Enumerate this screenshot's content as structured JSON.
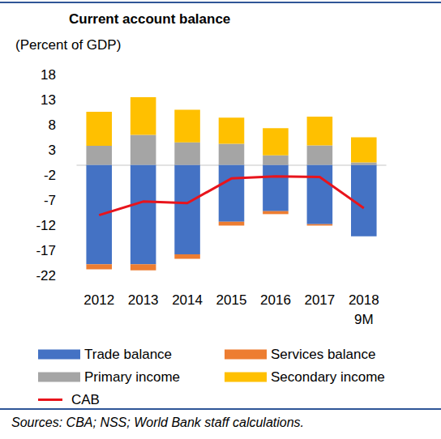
{
  "chart_data": {
    "type": "bar",
    "title": "Current account balance",
    "subtitle": "(Percent of GDP)",
    "annotation": "Sources: CBA; NSS; World Bank staff calculations.",
    "categories": [
      "2012",
      "2013",
      "2014",
      "2015",
      "2016",
      "2017",
      "2018\n9M"
    ],
    "series": [
      {
        "name": "Trade balance",
        "type": "bar",
        "color": "#4472c4",
        "values": [
          -19.8,
          -19.8,
          -17.8,
          -11.3,
          -9.2,
          -11.8,
          -14.2
        ]
      },
      {
        "name": "Services balance",
        "type": "bar",
        "color": "#ed7d31",
        "values": [
          -1.0,
          -1.2,
          -0.9,
          -0.8,
          -0.6,
          -0.3,
          0
        ]
      },
      {
        "name": "Primary income",
        "type": "bar",
        "color": "#a5a5a5",
        "values": [
          3.8,
          6.0,
          4.5,
          4.2,
          1.9,
          3.9,
          0.5
        ]
      },
      {
        "name": "Secondary income",
        "type": "bar",
        "color": "#ffc000",
        "values": [
          6.8,
          7.5,
          6.5,
          5.2,
          5.4,
          5.7,
          5.0
        ]
      },
      {
        "name": "CAB",
        "type": "line",
        "color": "#e8141c",
        "values": [
          -10.0,
          -7.3,
          -7.6,
          -2.7,
          -2.3,
          -2.4,
          -8.6
        ]
      }
    ],
    "stacked": true,
    "ylim": [
      -22,
      18
    ],
    "yticks": [
      -22,
      -17,
      -12,
      -7,
      -2,
      3,
      8,
      13,
      18
    ],
    "grid": false,
    "legend": "bottom"
  }
}
